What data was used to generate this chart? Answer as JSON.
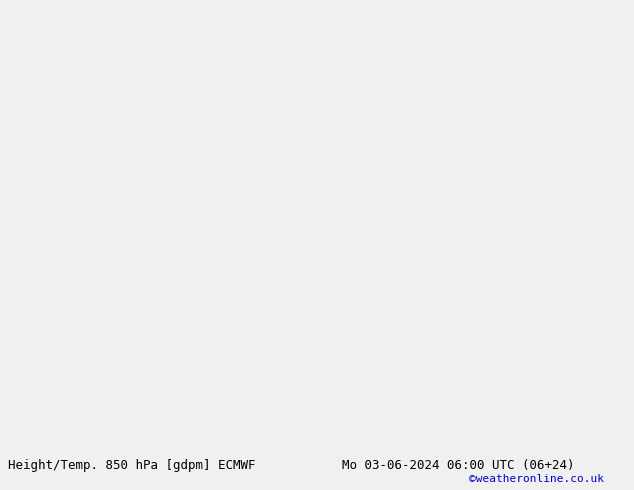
{
  "title_left": "Height/Temp. 850 hPa [gdpm] ECMWF",
  "title_right": "Mo 03-06-2024 06:00 UTC (06+24)",
  "credit": "©weatheronline.co.uk",
  "bg_color": "#d8d8d8",
  "land_color": "#c8e6a0",
  "gray_color": "#b8b8b8",
  "bottom_bar_color": "#f0f0f0",
  "font_size_title": 9,
  "font_size_credit": 8
}
